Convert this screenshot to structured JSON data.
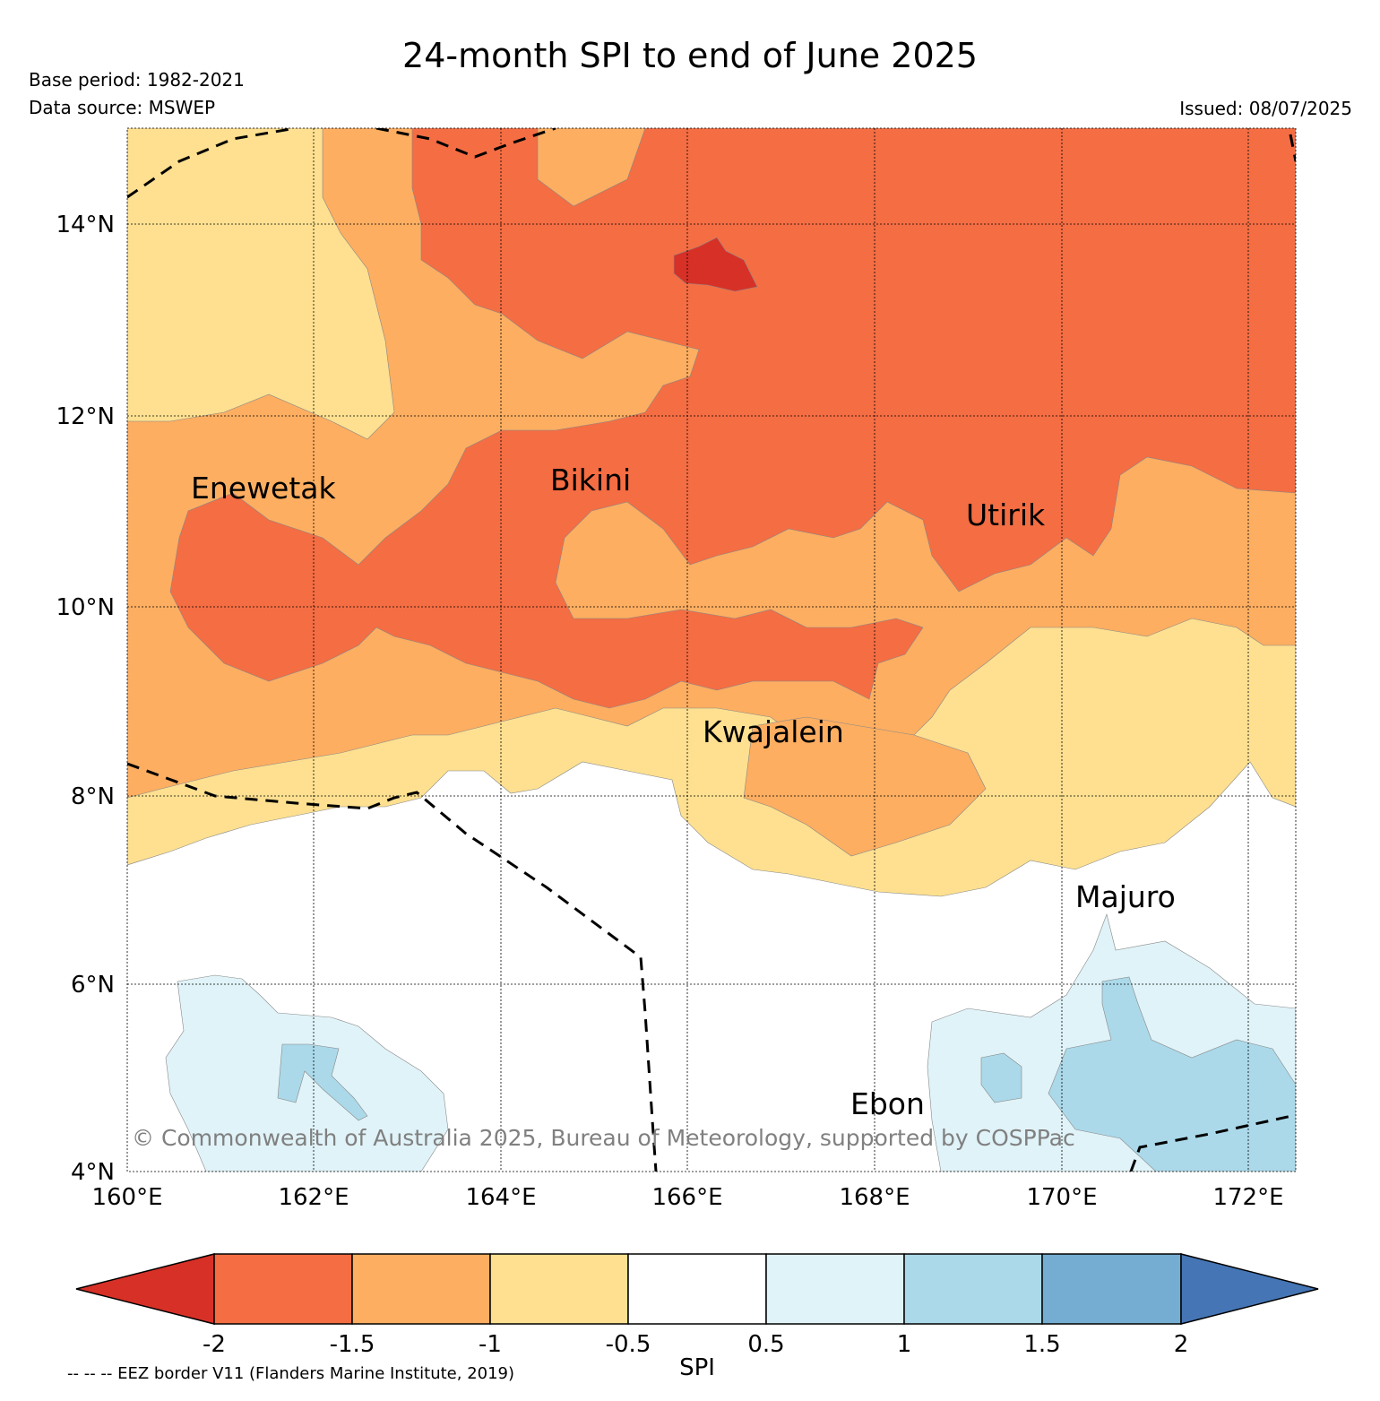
{
  "title": "24-month SPI to end of June 2025",
  "base_period": "Base period: 1982-2021",
  "data_source": "Data source: MSWEP",
  "issued": "Issued: 08/07/2025",
  "copyright": "© Commonwealth of Australia 2025, Bureau of Meteorology, supported by COSPPac",
  "eez_note": "-- -- -- EEZ border V11 (Flanders Marine Institute, 2019)",
  "lat_ticks": [
    "14°N",
    "12°N",
    "10°N",
    "8°N",
    "6°N",
    "4°N"
  ],
  "lon_ticks": [
    "160°E",
    "162°E",
    "164°E",
    "166°E",
    "168°E",
    "170°E",
    "172°E"
  ],
  "places": [
    "Enewetak",
    "Bikini",
    "Utirik",
    "Kwajalein",
    "Majuro",
    "Ebon"
  ],
  "colorbar": {
    "label": "SPI",
    "tick_labels": [
      "-2",
      "-1.5",
      "-1",
      "-0.5",
      "0.5",
      "1",
      "1.5",
      "2"
    ],
    "colors": [
      "#d73027",
      "#f46d43",
      "#fdae61",
      "#fee090",
      "#ffffff",
      "#e0f3f8",
      "#abd9e9",
      "#74add1",
      "#4575b4"
    ]
  }
}
